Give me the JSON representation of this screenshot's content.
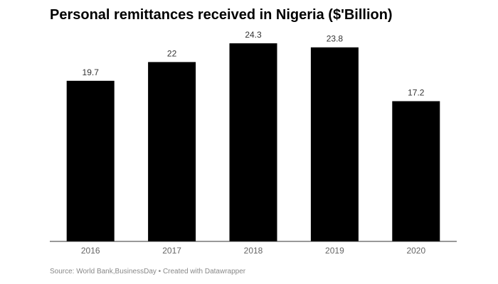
{
  "chart_data": {
    "type": "bar",
    "title": "Personal remittances received in Nigeria ($'Billion)",
    "categories": [
      "2016",
      "2017",
      "2018",
      "2019",
      "2020"
    ],
    "values": [
      19.7,
      22,
      24.3,
      23.8,
      17.2
    ],
    "value_labels": [
      "19.7",
      "22",
      "24.3",
      "23.8",
      "17.2"
    ],
    "xlabel": "",
    "ylabel": "",
    "ylim": [
      0,
      24.3
    ],
    "grid": false,
    "legend": "none",
    "bar_color": "#000000",
    "axis_color": "#333333"
  },
  "footer": {
    "source": "Source: World Bank,BusinessDay • Created with Datawrapper"
  }
}
